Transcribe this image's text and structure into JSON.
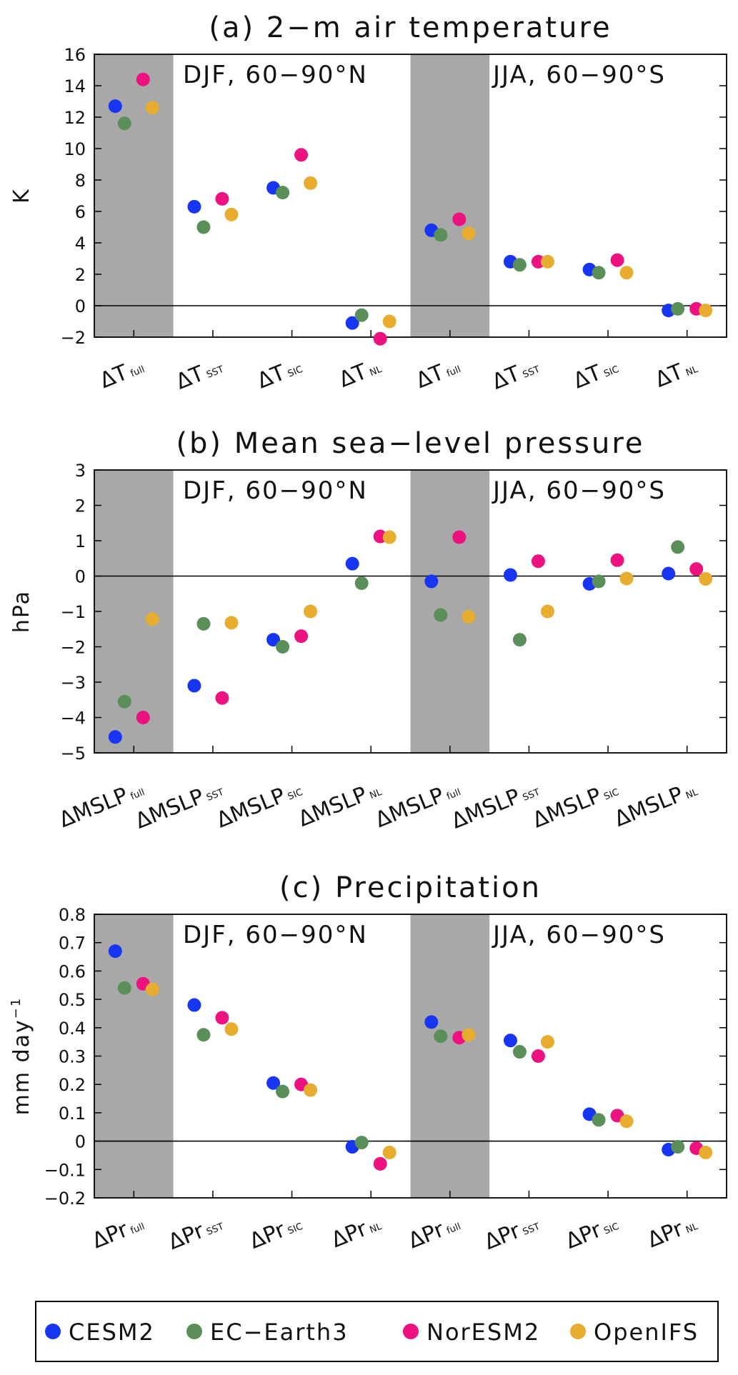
{
  "chart_data": [
    {
      "type": "scatter",
      "title": "(a) 2−m air temperature",
      "ylabel": "K",
      "ylim": [
        -2,
        16
      ],
      "yticks": [
        -2,
        0,
        2,
        4,
        6,
        8,
        10,
        12,
        14,
        16
      ],
      "ytick_labels": [
        "−2",
        "0",
        "2",
        "4",
        "6",
        "8",
        "10",
        "12",
        "14",
        "16"
      ],
      "region_labels": [
        "DJF, 60−90°N",
        "JJA, 60−90°S"
      ],
      "categories": [
        {
          "main": "ΔT",
          "sub": "full"
        },
        {
          "main": "ΔT",
          "sub": "SST"
        },
        {
          "main": "ΔT",
          "sub": "SIC"
        },
        {
          "main": "ΔT",
          "sub": "NL"
        },
        {
          "main": "ΔT",
          "sub": "full"
        },
        {
          "main": "ΔT",
          "sub": "SST"
        },
        {
          "main": "ΔT",
          "sub": "SIC"
        },
        {
          "main": "ΔT",
          "sub": "NL"
        }
      ],
      "shaded_categories": [
        0,
        4
      ],
      "grid": false,
      "series": [
        {
          "name": "CESM2",
          "values": [
            12.7,
            6.3,
            7.5,
            -1.1,
            4.8,
            2.8,
            2.3,
            -0.3
          ]
        },
        {
          "name": "EC−Earth3",
          "values": [
            11.6,
            5.0,
            7.2,
            -0.6,
            4.5,
            2.6,
            2.1,
            -0.2
          ]
        },
        {
          "name": "NorESM2",
          "values": [
            14.4,
            6.8,
            9.6,
            -2.1,
            5.5,
            2.8,
            2.9,
            -0.2
          ]
        },
        {
          "name": "OpenIFS",
          "values": [
            12.6,
            5.8,
            7.8,
            -1.0,
            4.6,
            2.8,
            2.1,
            -0.3
          ]
        }
      ]
    },
    {
      "type": "scatter",
      "title": "(b) Mean sea−level pressure",
      "ylabel": "hPa",
      "ylim": [
        -5,
        3
      ],
      "yticks": [
        -5,
        -4,
        -3,
        -2,
        -1,
        0,
        1,
        2,
        3
      ],
      "ytick_labels": [
        "−5",
        "−4",
        "−3",
        "−2",
        "−1",
        "0",
        "1",
        "2",
        "3"
      ],
      "region_labels": [
        "DJF, 60−90°N",
        "JJA, 60−90°S"
      ],
      "categories": [
        {
          "main": "ΔMSLP",
          "sub": "full"
        },
        {
          "main": "ΔMSLP",
          "sub": "SST"
        },
        {
          "main": "ΔMSLP",
          "sub": "SIC"
        },
        {
          "main": "ΔMSLP",
          "sub": "NL"
        },
        {
          "main": "ΔMSLP",
          "sub": "full"
        },
        {
          "main": "ΔMSLP",
          "sub": "SST"
        },
        {
          "main": "ΔMSLP",
          "sub": "SIC"
        },
        {
          "main": "ΔMSLP",
          "sub": "NL"
        }
      ],
      "shaded_categories": [
        0,
        4
      ],
      "grid": false,
      "series": [
        {
          "name": "CESM2",
          "values": [
            -4.55,
            -3.1,
            -1.8,
            0.35,
            -0.15,
            0.03,
            -0.22,
            0.07
          ]
        },
        {
          "name": "EC−Earth3",
          "values": [
            -3.55,
            -1.35,
            -2.0,
            -0.2,
            -1.1,
            -1.8,
            -0.15,
            0.82
          ]
        },
        {
          "name": "NorESM2",
          "values": [
            -4.0,
            -3.45,
            -1.7,
            1.12,
            1.1,
            0.42,
            0.45,
            0.2
          ]
        },
        {
          "name": "OpenIFS",
          "values": [
            -1.22,
            -1.32,
            -1.0,
            1.1,
            -1.15,
            -1.0,
            -0.07,
            -0.08
          ]
        }
      ]
    },
    {
      "type": "scatter",
      "title": "(c) Precipitation",
      "ylabel": "mm day",
      "ylabel_sup": "−1",
      "ylim": [
        -0.2,
        0.8
      ],
      "yticks": [
        -0.2,
        -0.1,
        0,
        0.1,
        0.2,
        0.3,
        0.4,
        0.5,
        0.6,
        0.7,
        0.8
      ],
      "ytick_labels": [
        "−0.2",
        "−0.1",
        "0",
        "0.1",
        "0.2",
        "0.3",
        "0.4",
        "0.5",
        "0.6",
        "0.7",
        "0.8"
      ],
      "region_labels": [
        "DJF, 60−90°N",
        "JJA, 60−90°S"
      ],
      "categories": [
        {
          "main": "ΔPr",
          "sub": "full"
        },
        {
          "main": "ΔPr",
          "sub": "SST"
        },
        {
          "main": "ΔPr",
          "sub": "SIC"
        },
        {
          "main": "ΔPr",
          "sub": "NL"
        },
        {
          "main": "ΔPr",
          "sub": "full"
        },
        {
          "main": "ΔPr",
          "sub": "SST"
        },
        {
          "main": "ΔPr",
          "sub": "SIC"
        },
        {
          "main": "ΔPr",
          "sub": "NL"
        }
      ],
      "shaded_categories": [
        0,
        4
      ],
      "grid": false,
      "series": [
        {
          "name": "CESM2",
          "values": [
            0.67,
            0.48,
            0.205,
            -0.02,
            0.42,
            0.355,
            0.095,
            -0.03
          ]
        },
        {
          "name": "EC−Earth3",
          "values": [
            0.54,
            0.375,
            0.175,
            -0.005,
            0.37,
            0.315,
            0.075,
            -0.02
          ]
        },
        {
          "name": "NorESM2",
          "values": [
            0.555,
            0.435,
            0.2,
            -0.08,
            0.365,
            0.3,
            0.09,
            -0.025
          ]
        },
        {
          "name": "OpenIFS",
          "values": [
            0.535,
            0.395,
            0.18,
            -0.04,
            0.375,
            0.35,
            0.07,
            -0.04
          ]
        }
      ]
    }
  ],
  "colors": {
    "CESM2": "#1836f2",
    "EC−Earth3": "#5a8f5a",
    "NorESM2": "#ec127f",
    "OpenIFS": "#e8ad2e",
    "shade": "#a8a8a8"
  },
  "legend": {
    "placement": "bottom",
    "items": [
      "CESM2",
      "EC−Earth3",
      "NorESM2",
      "OpenIFS"
    ]
  }
}
